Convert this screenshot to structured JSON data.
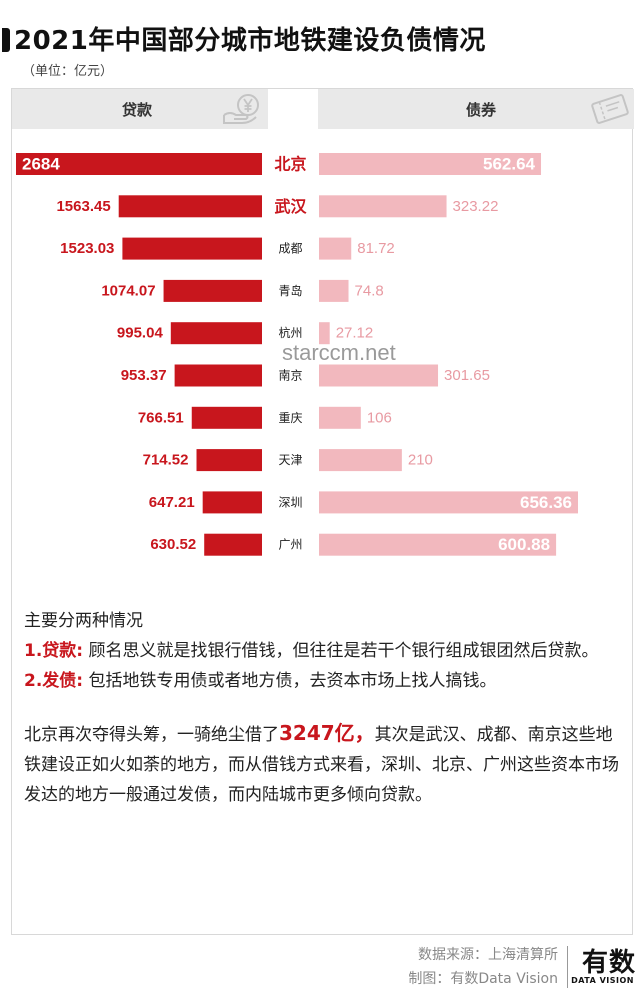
{
  "title": "2021年中国部分城市地铁建设负债情况",
  "unit": "（单位：亿元）",
  "header": {
    "left_label": "贷款",
    "right_label": "债券"
  },
  "icons": {
    "left": "yuan-coin-icon",
    "right": "ticket-icon"
  },
  "watermark": "starccm.net",
  "chart_data": {
    "type": "bar",
    "categories": [
      "北京",
      "武汉",
      "成都",
      "青岛",
      "杭州",
      "南京",
      "重庆",
      "天津",
      "深圳",
      "广州"
    ],
    "series": [
      {
        "name": "贷款",
        "values": [
          2684,
          1563.45,
          1523.03,
          1074.07,
          995.04,
          953.37,
          766.51,
          714.52,
          647.21,
          630.52
        ]
      },
      {
        "name": "债券",
        "values": [
          562.64,
          323.22,
          81.72,
          74.8,
          27.12,
          301.65,
          106,
          210,
          656.36,
          600.88
        ]
      }
    ],
    "value_labels": {
      "loans": [
        "2684",
        "1563.45",
        "1523.03",
        "1074.07",
        "995.04",
        "953.37",
        "766.51",
        "714.52",
        "647.21",
        "630.52"
      ],
      "bonds": [
        "562.64",
        "323.22",
        "81.72",
        "74.8",
        "27.12",
        "301.65",
        "106",
        "210",
        "656.36",
        "600.88"
      ]
    },
    "colors": {
      "loan": "#c8161d",
      "bond": "#f2b8be",
      "label_loan": "#c8161d",
      "label_bond": "#e89aa2",
      "city_highlight": "#c8161d",
      "city_normal": "#222222"
    }
  },
  "text": {
    "heading": "主要分两种情况",
    "item1_label": "1.贷款:",
    "item1_text": " 顾名思义就是找银行借钱，但往往是若干个银行组成银团然后贷款。",
    "item2_label": "2.发债:",
    "item2_text": " 包括地铁专用债或者地方债，去资本市场上找人搞钱。",
    "para_a": "北京再次夺得头筹，一骑绝尘借了",
    "para_highlight": "3247亿，",
    "para_b": "其次是武汉、成都、南京这些地铁建设正如火如荼的地方，而从借钱方式来看，深圳、北京、广州这些资本市场发达的地方一般通过发债，而内陆城市更多倾向贷款。"
  },
  "footer": {
    "source": "数据来源：上海清算所",
    "made_by": "制图：有数Data Vision",
    "logo": "有数",
    "logo_sub": "DATA VISION"
  }
}
